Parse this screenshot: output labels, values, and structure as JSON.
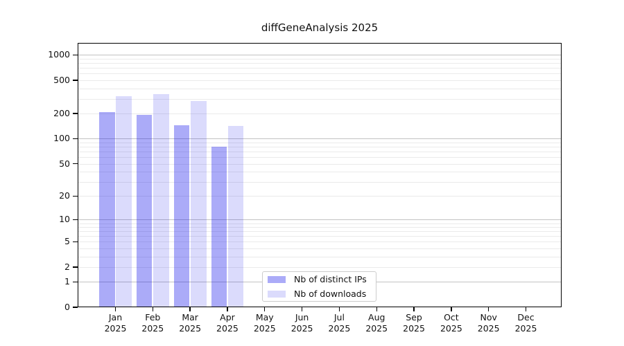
{
  "title": "diffGeneAnalysis 2025",
  "chart_data": {
    "type": "bar",
    "title": "diffGeneAnalysis 2025",
    "categories": [
      "Jan 2025",
      "Feb 2025",
      "Mar 2025",
      "Apr 2025",
      "May 2025",
      "Jun 2025",
      "Jul 2025",
      "Aug 2025",
      "Sep 2025",
      "Oct 2025",
      "Nov 2025",
      "Dec 2025"
    ],
    "month_labels": [
      "Jan",
      "Feb",
      "Mar",
      "Apr",
      "May",
      "Jun",
      "Jul",
      "Aug",
      "Sep",
      "Oct",
      "Nov",
      "Dec"
    ],
    "year_label": "2025",
    "series": [
      {
        "name": "Nb of distinct IPs",
        "color": "rgba(15,15,235,0.35)",
        "values": [
          208,
          192,
          145,
          80,
          null,
          null,
          null,
          null,
          null,
          null,
          null,
          null
        ]
      },
      {
        "name": "Nb of downloads",
        "color": "rgba(15,15,235,0.15)",
        "values": [
          322,
          342,
          284,
          143,
          null,
          null,
          null,
          null,
          null,
          null,
          null,
          null
        ]
      }
    ],
    "xlabel": "",
    "ylabel": "",
    "yscale": "log1p",
    "ylim": [
      0,
      1400
    ],
    "y_ticks": [
      0,
      1,
      2,
      5,
      10,
      20,
      50,
      100,
      200,
      500,
      1000
    ],
    "grid": "horizontal, major and minor",
    "legend_position": "bottom-center"
  },
  "colors": {
    "ips_bar": "rgba(15,15,235,0.35)",
    "downloads_bar": "rgba(15,15,235,0.15)",
    "grid_major": "#c2c2c2",
    "grid_minor": "#eaeaea",
    "axis": "#000000",
    "legend_border": "#cccccc",
    "background": "#ffffff"
  }
}
